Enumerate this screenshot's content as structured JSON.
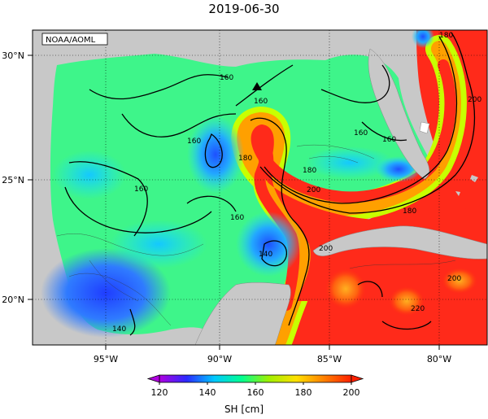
{
  "title": "2019-06-30",
  "source_label": "NOAA/AOML",
  "lat_labels": [
    "30°N",
    "25°N",
    "20°N"
  ],
  "lon_labels": [
    "95°W",
    "90°W",
    "85°W",
    "80°W"
  ],
  "contour_labels": [
    "160",
    "160",
    "160",
    "160",
    "160",
    "160",
    "160",
    "180",
    "180",
    "180",
    "180",
    "200",
    "200",
    "200",
    "200",
    "140",
    "140",
    "220"
  ],
  "colorbar": {
    "title": "SH [cm]",
    "ticks": [
      "120",
      "140",
      "160",
      "180",
      "200"
    ],
    "min": 120,
    "max": 200,
    "colors": [
      "#b000e0",
      "#2a2aff",
      "#00c8ff",
      "#00ff90",
      "#a0f000",
      "#ffe000",
      "#ff8000",
      "#ff2000"
    ]
  },
  "colors": {
    "land": "#c8c8c8",
    "ocean_low": "#2a55ff",
    "ocean_mid": "#44ff88",
    "ocean_high": "#ff2a1a"
  },
  "marker": "triangle"
}
